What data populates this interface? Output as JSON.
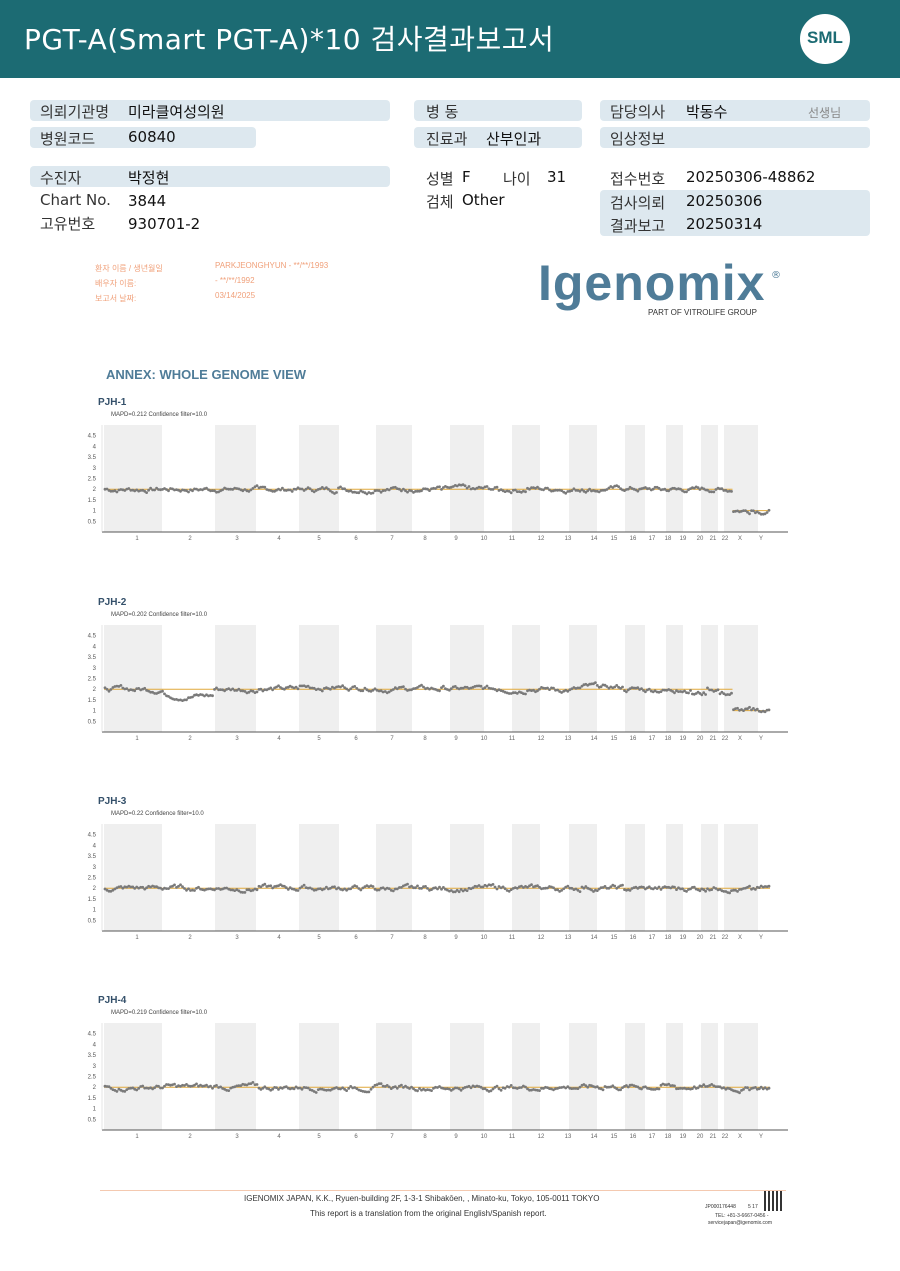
{
  "header": {
    "title": "PGT-A(Smart  PGT-A)*10 검사결과보고서",
    "logo_text": "SML"
  },
  "info": {
    "institution_label": "의뢰기관명",
    "institution": "미라클여성의원",
    "hospital_code_label": "병원코드",
    "hospital_code": "60840",
    "ward_label": "병  동",
    "ward": "",
    "dept_label": "진료과",
    "dept": "산부인과",
    "doctor_label": "담당의사",
    "doctor": "박동수",
    "doctor_suffix": "선생님",
    "clinical_label": "임상정보",
    "clinical": "",
    "patient_label": "수진자",
    "patient": "박정현",
    "chart_label": "Chart No.",
    "chart": "3844",
    "id_label": "고유번호",
    "id": "930701-2",
    "sex_label": "성별",
    "sex": "F",
    "age_label": "나이",
    "age": "31",
    "specimen_label": "검체",
    "specimen": "Other",
    "receipt_label": "접수번호",
    "receipt": "20250306-48862",
    "request_label": "검사의뢰",
    "request": "20250306",
    "report_label": "결과보고",
    "report": "20250314"
  },
  "patient_translation": {
    "patient_line_label": "환자 이름 / 생년월일",
    "patient_line": "PARKJEONGHYUN - **/**/1993",
    "partner_label": "배우자 이름:",
    "partner": " - **/**/1992",
    "report_date_label": "보고서 날짜:",
    "report_date": "03/14/2025"
  },
  "brand": {
    "name": "Igenomix",
    "registered": "®",
    "subline": "PART OF VITROLIFE GROUP"
  },
  "annex_title": "ANNEX: WHOLE GENOME VIEW",
  "chart_data": [
    {
      "type": "scatter",
      "title": "PJH-1",
      "subtitle": "MAPD=0.212 Confidence filter=10.0",
      "yticks": [
        "4.5",
        "4",
        "3.5",
        "3",
        "2.5",
        "2",
        "1.5",
        "1",
        "0.5"
      ],
      "ylim": [
        0,
        5
      ],
      "chromosomes": [
        "1",
        "2",
        "3",
        "4",
        "5",
        "6",
        "7",
        "8",
        "9",
        "10",
        "11",
        "12",
        "13",
        "14",
        "15",
        "16",
        "17",
        "18",
        "19",
        "20",
        "21",
        "22",
        "X",
        "Y"
      ],
      "copy_number": [
        2.0,
        2.0,
        2.0,
        2.0,
        2.0,
        2.0,
        2.0,
        2.0,
        2.0,
        2.0,
        2.0,
        2.0,
        2.0,
        2.0,
        2.0,
        2.0,
        2.0,
        2.0,
        2.0,
        2.0,
        2.0,
        2.0,
        1.0,
        1.0
      ],
      "reference_line": [
        2,
        1
      ],
      "grid": false
    },
    {
      "type": "scatter",
      "title": "PJH-2",
      "subtitle": "MAPD=0.202 Confidence filter=10.0",
      "yticks": [
        "4.5",
        "4",
        "3.5",
        "3",
        "2.5",
        "2",
        "1.5",
        "1",
        "0.5"
      ],
      "ylim": [
        0,
        5
      ],
      "chromosomes": [
        "1",
        "2",
        "3",
        "4",
        "5",
        "6",
        "7",
        "8",
        "9",
        "10",
        "11",
        "12",
        "13",
        "14",
        "15",
        "16",
        "17",
        "18",
        "19",
        "20",
        "21",
        "22",
        "X",
        "Y"
      ],
      "copy_number": [
        2.0,
        1.7,
        2.0,
        2.0,
        2.1,
        2.1,
        2.0,
        2.0,
        2.0,
        2.0,
        2.0,
        2.0,
        2.0,
        2.1,
        2.1,
        2.0,
        2.0,
        1.9,
        2.0,
        1.8,
        2.0,
        1.8,
        1.0,
        1.0
      ],
      "reference_line": [
        2,
        1
      ],
      "grid": false
    },
    {
      "type": "scatter",
      "title": "PJH-3",
      "subtitle": "MAPD=0.22 Confidence filter=10.0",
      "yticks": [
        "4.5",
        "4",
        "3.5",
        "3",
        "2.5",
        "2",
        "1.5",
        "1",
        "0.5"
      ],
      "ylim": [
        0,
        5
      ],
      "chromosomes": [
        "1",
        "2",
        "3",
        "4",
        "5",
        "6",
        "7",
        "8",
        "9",
        "10",
        "11",
        "12",
        "13",
        "14",
        "15",
        "16",
        "17",
        "18",
        "19",
        "20",
        "21",
        "22",
        "X",
        "Y"
      ],
      "copy_number": [
        2.0,
        2.0,
        2.0,
        2.0,
        2.0,
        2.0,
        2.0,
        2.0,
        2.0,
        2.0,
        2.0,
        2.0,
        2.0,
        2.0,
        2.0,
        2.0,
        2.0,
        2.0,
        2.0,
        2.0,
        2.0,
        2.0,
        1.9,
        2.0
      ],
      "reference_line": [
        2,
        2
      ],
      "grid": false
    },
    {
      "type": "scatter",
      "title": "PJH-4",
      "subtitle": "MAPD=0.219 Confidence filter=10.0",
      "yticks": [
        "4.5",
        "4",
        "3.5",
        "3",
        "2.5",
        "2",
        "1.5",
        "1",
        "0.5"
      ],
      "ylim": [
        0,
        5
      ],
      "chromosomes": [
        "1",
        "2",
        "3",
        "4",
        "5",
        "6",
        "7",
        "8",
        "9",
        "10",
        "11",
        "12",
        "13",
        "14",
        "15",
        "16",
        "17",
        "18",
        "19",
        "20",
        "21",
        "22",
        "X",
        "Y"
      ],
      "copy_number": [
        2.0,
        2.0,
        2.0,
        2.0,
        2.0,
        2.0,
        2.0,
        2.0,
        2.0,
        2.0,
        2.0,
        2.0,
        2.0,
        2.0,
        2.0,
        2.0,
        2.0,
        2.0,
        2.0,
        2.0,
        2.0,
        2.0,
        1.9,
        2.0
      ],
      "reference_line": [
        2,
        2
      ],
      "grid": false
    }
  ],
  "footer": {
    "address": "IGENOMIX JAPAN, K.K., Ryuen-building 2F, 1-3-1 Shibakōen, , Minato-ku, Tokyo, 105-0011 TOKYO",
    "translation_note": "This report is a translation from the original English/Spanish report.",
    "doc_code": "JP000176448",
    "page": "5 17",
    "phone": "TEL: +81-3-6667-0456 -",
    "email": "servicejapan@igenomix.com"
  },
  "colors": {
    "header": "#1c6b73",
    "box": "#dde8ef",
    "brand": "#4f7c98",
    "point": "#7a7a7a",
    "reference": "#e0a83a",
    "band": "#efefef"
  }
}
